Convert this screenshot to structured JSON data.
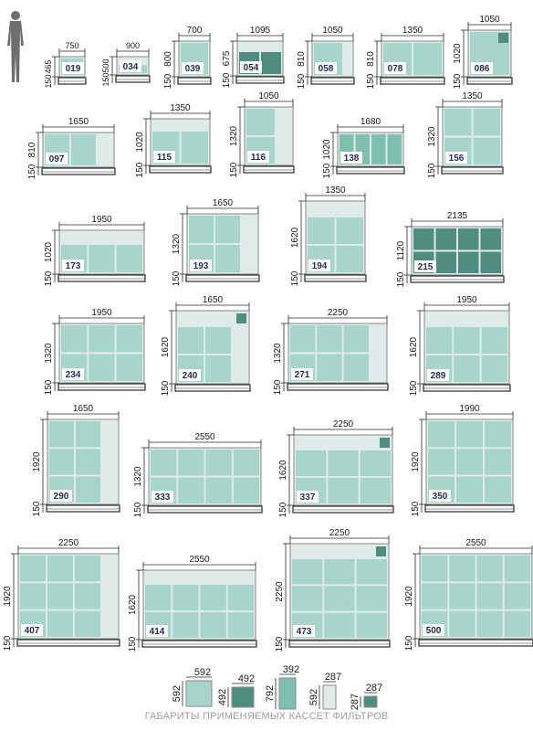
{
  "colors": {
    "frame": "#2a2a2a",
    "outline": "#8a8a8a",
    "cell_light": "#a8d5c9",
    "cell_pale": "#dfebe8",
    "cell_dark": "#4f8e7f",
    "cell_mid": "#7fbfae",
    "label_bg": "#ffffff",
    "label_text": "#1f2a55",
    "person": "#6e6e6e",
    "dim_text": "#1a1a1a",
    "caption": "#9aa0a0"
  },
  "units": [
    {
      "id": "019",
      "width": "750",
      "height": "465",
      "base": "150"
    },
    {
      "id": "034",
      "width": "900",
      "height": "500",
      "base": "150"
    },
    {
      "id": "039",
      "width": "700",
      "height": "800",
      "base": "150"
    },
    {
      "id": "054",
      "width": "1095",
      "height": "675",
      "base": "150"
    },
    {
      "id": "058",
      "width": "1050",
      "height": "810",
      "base": "150"
    },
    {
      "id": "078",
      "width": "1350",
      "height": "810",
      "base": "150"
    },
    {
      "id": "086",
      "width": "1050",
      "height": "1020",
      "base": "150"
    },
    {
      "id": "097",
      "width": "1650",
      "height": "810",
      "base": "150"
    },
    {
      "id": "115",
      "width": "1350",
      "height": "1020",
      "base": "150"
    },
    {
      "id": "116",
      "width": "1050",
      "height": "1320",
      "base": "150"
    },
    {
      "id": "138",
      "width": "1680",
      "height": "1020",
      "base": "150"
    },
    {
      "id": "156",
      "width": "1350",
      "height": "1320",
      "base": "150"
    },
    {
      "id": "173",
      "width": "1950",
      "height": "1020",
      "base": "150"
    },
    {
      "id": "193",
      "width": "1650",
      "height": "1320",
      "base": "150"
    },
    {
      "id": "194",
      "width": "1350",
      "height": "1620",
      "base": "150"
    },
    {
      "id": "215",
      "width": "2135",
      "height": "1120",
      "base": "150"
    },
    {
      "id": "234",
      "width": "1950",
      "height": "1320",
      "base": "150"
    },
    {
      "id": "240",
      "width": "1650",
      "height": "1620",
      "base": "150"
    },
    {
      "id": "271",
      "width": "2250",
      "height": "1320",
      "base": "150"
    },
    {
      "id": "289",
      "width": "1950",
      "height": "1620",
      "base": "150"
    },
    {
      "id": "290",
      "width": "1650",
      "height": "1920",
      "base": "150"
    },
    {
      "id": "333",
      "width": "2550",
      "height": "1320",
      "base": "150"
    },
    {
      "id": "337",
      "width": "2250",
      "height": "1620",
      "base": "150"
    },
    {
      "id": "350",
      "width": "1990",
      "height": "1920",
      "base": "150"
    },
    {
      "id": "407",
      "width": "2250",
      "height": "1920",
      "base": "150"
    },
    {
      "id": "414",
      "width": "2550",
      "height": "1620",
      "base": "150"
    },
    {
      "id": "473",
      "width": "2250",
      "height": "2250",
      "base": "150"
    },
    {
      "id": "500",
      "width": "2550",
      "height": "1920",
      "base": "150"
    }
  ],
  "legend": [
    {
      "width": "592",
      "height": "592"
    },
    {
      "width": "492",
      "height": "492"
    },
    {
      "width": "392",
      "height": "792"
    },
    {
      "width": "287",
      "height": "592"
    },
    {
      "width": "287",
      "height": "287"
    }
  ],
  "caption": "ГАБАРИТЫ ПРИМЕНЯЕМЫХ КАССЕТ ФИЛЬТРОВ"
}
